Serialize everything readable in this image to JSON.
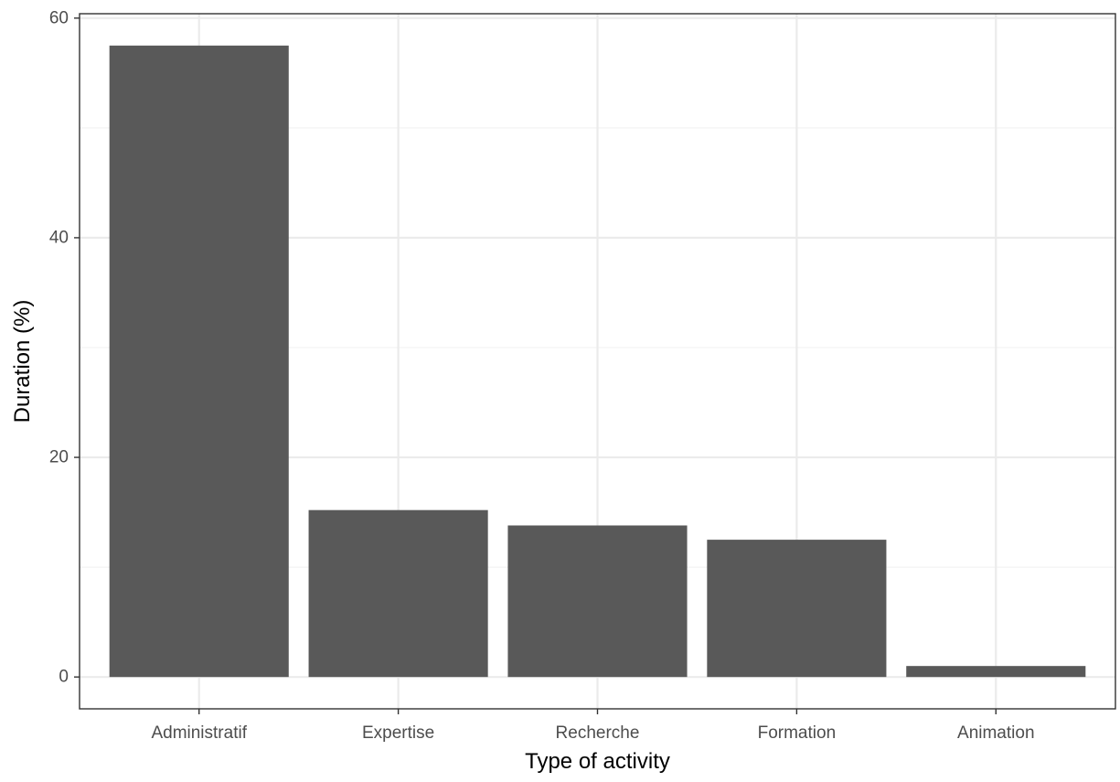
{
  "chart_data": {
    "type": "bar",
    "title": "",
    "xlabel": "Type of activity",
    "ylabel": "Duration (%)",
    "categories": [
      "Administratif",
      "Expertise",
      "Recherche",
      "Formation",
      "Animation"
    ],
    "values": [
      57.5,
      15.2,
      13.8,
      12.5,
      1.0
    ],
    "ylim": [
      -2.9,
      60.4
    ],
    "yticks": [
      0,
      20,
      40,
      60
    ],
    "ytick_labels": [
      "0",
      "20",
      "40",
      "60"
    ],
    "grid": true,
    "legend": "none",
    "colors": {
      "bar": "#595959",
      "grid_major": "#ebebeb",
      "grid_minor": "#f3f3f3",
      "panel_border": "#333333",
      "tick": "#333333"
    }
  }
}
